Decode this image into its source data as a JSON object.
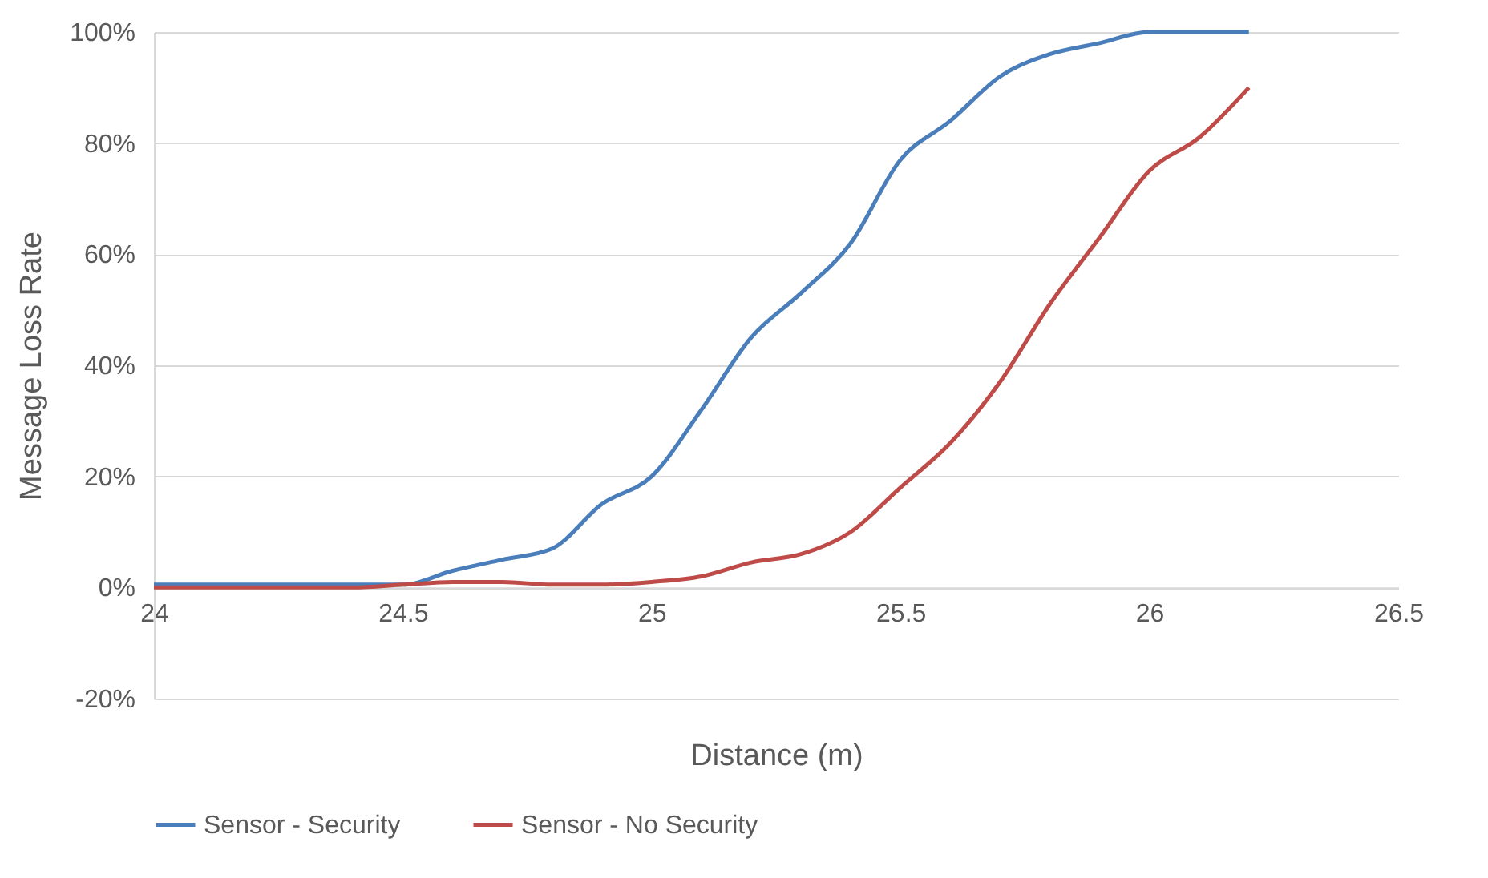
{
  "chart_data": {
    "type": "line",
    "xlabel": "Distance (m)",
    "ylabel": "Message Loss Rate",
    "x": [
      24,
      24.1,
      24.2,
      24.3,
      24.4,
      24.5,
      24.6,
      24.7,
      24.8,
      24.9,
      25,
      25.1,
      25.2,
      25.3,
      25.4,
      25.5,
      25.6,
      25.7,
      25.8,
      25.9,
      26,
      26.1,
      26.2
    ],
    "series": [
      {
        "name": "Sensor - Security",
        "color": "#4a7ebb",
        "values": [
          0.5,
          0.5,
          0.5,
          0.5,
          0.5,
          0.5,
          3,
          5,
          7,
          15,
          20,
          32,
          45,
          53,
          62,
          77,
          84,
          92,
          96,
          98,
          100,
          100,
          100
        ]
      },
      {
        "name": "Sensor - No Security",
        "color": "#be4b48",
        "values": [
          0,
          0,
          0,
          0,
          0,
          0.5,
          1,
          1,
          0.5,
          0.5,
          1,
          2,
          4.5,
          6,
          10,
          18,
          26,
          37,
          51,
          63,
          75,
          81,
          90
        ]
      }
    ],
    "xlim": [
      24,
      26.5
    ],
    "xticks": [
      24,
      24.5,
      25,
      25.5,
      26,
      26.5
    ],
    "ylim": [
      -20,
      100
    ],
    "yticks": [
      {
        "value": -20,
        "label": "-20%"
      },
      {
        "value": 0,
        "label": "0%"
      },
      {
        "value": 20,
        "label": "20%"
      },
      {
        "value": 40,
        "label": "40%"
      },
      {
        "value": 60,
        "label": "60%"
      },
      {
        "value": 80,
        "label": "80%"
      },
      {
        "value": 100,
        "label": "100%"
      }
    ],
    "grid": "y",
    "legend": "bottom",
    "marker": "none",
    "line_style": "solid"
  }
}
